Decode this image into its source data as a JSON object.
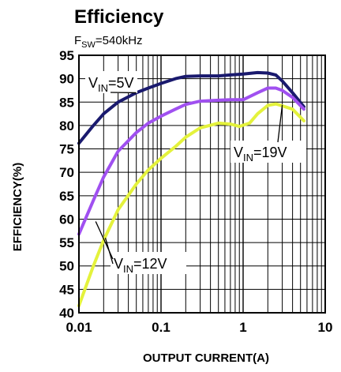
{
  "chart_data": {
    "type": "line",
    "title": "Efficiency",
    "subtitle": {
      "main": "F",
      "sub": "SW",
      "rest": "=540kHz"
    },
    "xlabel": "OUTPUT CURRENT(A)",
    "ylabel": "EFFICIENCY(%)",
    "xscale": "log",
    "xlim": [
      0.01,
      10
    ],
    "ylim": [
      40,
      95
    ],
    "xticks": [
      0.01,
      0.1,
      1,
      10
    ],
    "xtick_labels": [
      "0.01",
      "0.1",
      "1",
      "10"
    ],
    "yticks": [
      40,
      45,
      50,
      55,
      60,
      65,
      70,
      75,
      80,
      85,
      90,
      95
    ],
    "ytick_labels": [
      "40",
      "45",
      "50",
      "55",
      "60",
      "65",
      "70",
      "75",
      "80",
      "85",
      "90",
      "95"
    ],
    "grid": true,
    "series": [
      {
        "name": "VIN=5V",
        "label": {
          "main": "V",
          "sub": "IN",
          "rest": "=5V"
        },
        "color": "#1a1a6e",
        "x": [
          0.01,
          0.015,
          0.02,
          0.03,
          0.05,
          0.07,
          0.1,
          0.15,
          0.2,
          0.3,
          0.5,
          0.7,
          1,
          1.5,
          2,
          2.5,
          3,
          4,
          5.5
        ],
        "y": [
          76.2,
          80,
          82.5,
          85,
          87,
          88,
          89,
          90,
          90.5,
          90.6,
          90.6,
          90.8,
          91,
          91.3,
          91.2,
          90.8,
          89.5,
          87,
          84
        ]
      },
      {
        "name": "VIN=12V",
        "label": {
          "main": "V",
          "sub": "IN",
          "rest": "=12V"
        },
        "color": "#a050f0",
        "x": [
          0.01,
          0.015,
          0.02,
          0.03,
          0.05,
          0.07,
          0.1,
          0.15,
          0.2,
          0.3,
          0.5,
          0.7,
          1,
          1.5,
          2,
          2.5,
          3,
          4,
          5.5
        ],
        "y": [
          56.8,
          64,
          69,
          74.5,
          78.5,
          80.5,
          82,
          83.5,
          84.5,
          85.2,
          85.4,
          85.5,
          85.5,
          87,
          88,
          88,
          87.5,
          86,
          83.5
        ]
      },
      {
        "name": "VIN=19V",
        "label": {
          "main": "V",
          "sub": "IN",
          "rest": "=19V"
        },
        "color": "#e4f23c",
        "x": [
          0.01,
          0.015,
          0.02,
          0.03,
          0.05,
          0.07,
          0.1,
          0.15,
          0.2,
          0.3,
          0.5,
          0.7,
          0.9,
          1.2,
          1.5,
          2,
          2.5,
          3,
          4,
          5.5
        ],
        "y": [
          41.5,
          50,
          55.5,
          62,
          67.5,
          70.5,
          73,
          75.5,
          77.5,
          79.5,
          80.5,
          80.3,
          79.8,
          80.5,
          82.5,
          84.3,
          84.6,
          84.2,
          83.5,
          81
        ]
      }
    ],
    "annotations": [
      {
        "series": 0,
        "text_label": {
          "main": "V",
          "sub": "IN",
          "rest": "=5V"
        },
        "arrow_to": [
          0.05,
          87
        ]
      },
      {
        "series": 1,
        "text_label": {
          "main": "V",
          "sub": "IN",
          "rest": "=12V"
        },
        "arrow_to": [
          [
            0.016,
            59.5
          ],
          [
            0.021,
            56
          ]
        ]
      },
      {
        "series": 2,
        "text_label": {
          "main": "V",
          "sub": "IN",
          "rest": "=19V"
        },
        "arrow_to": [
          3,
          84.4
        ]
      }
    ]
  }
}
